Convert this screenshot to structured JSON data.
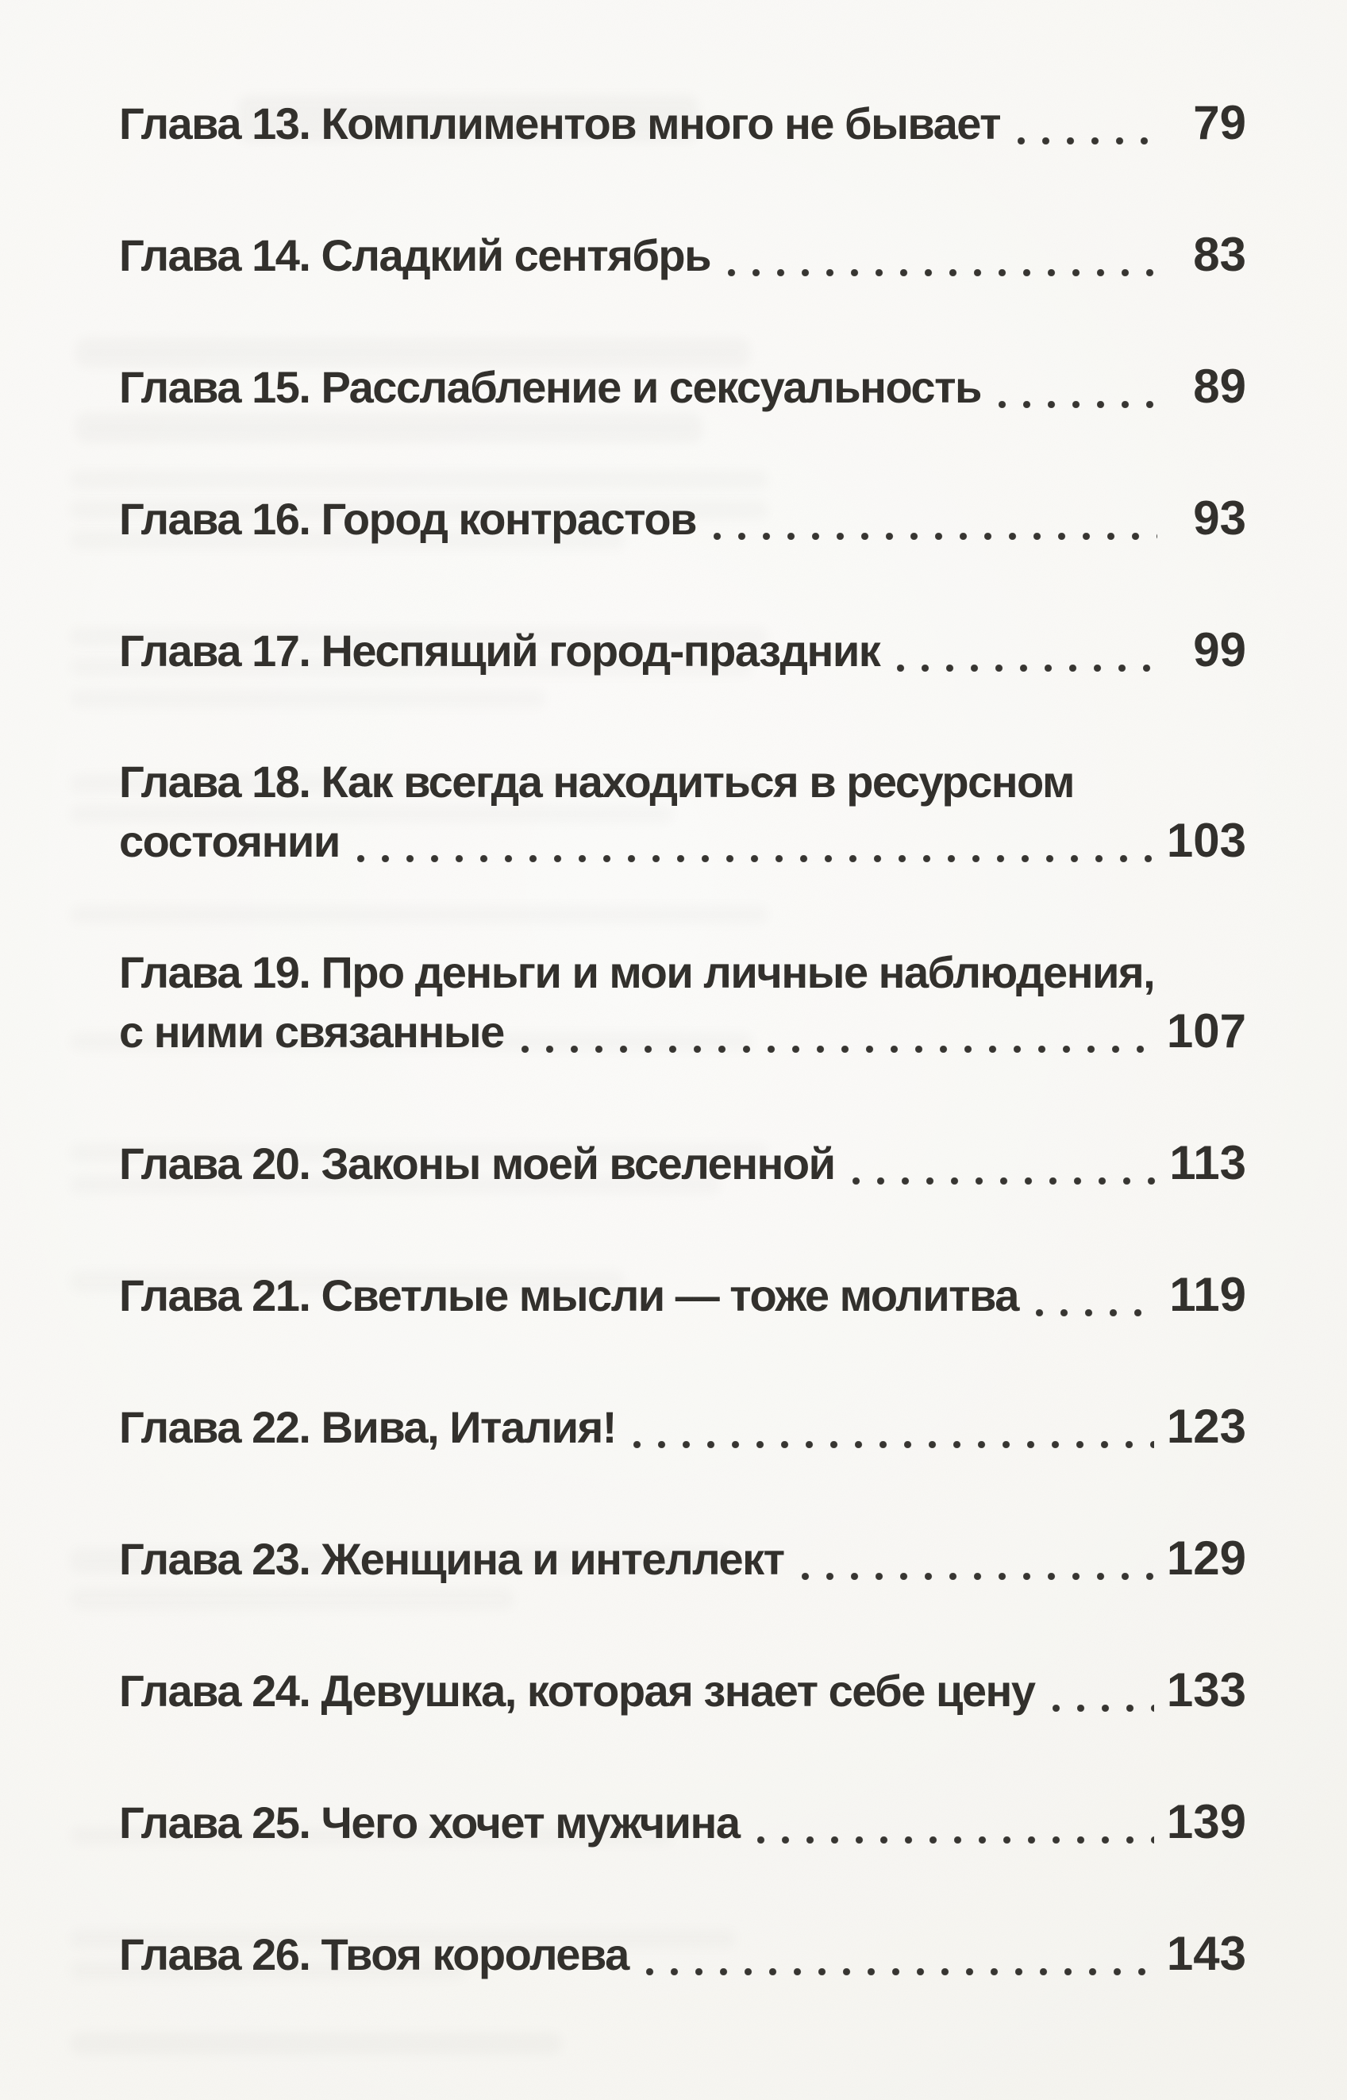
{
  "page": {
    "kind": "book-table-of-contents",
    "language": "ru"
  },
  "colors": {
    "paper": "#f8f7f3",
    "ink": "#2f2d29",
    "dot_leader": "#34322e"
  },
  "toc": {
    "entries": [
      {
        "lines": [
          "Глава 13. Комплиментов много не бывает"
        ],
        "page": "79"
      },
      {
        "lines": [
          "Глава 14. Сладкий сентябрь"
        ],
        "page": "83"
      },
      {
        "lines": [
          "Глава 15. Расслабление и сексуальность"
        ],
        "page": "89"
      },
      {
        "lines": [
          "Глава 16. Город контрастов"
        ],
        "page": "93"
      },
      {
        "lines": [
          "Глава 17. Неспящий город-праздник"
        ],
        "page": "99"
      },
      {
        "lines": [
          "Глава 18. Как всегда находиться в ресурсном",
          "состоянии"
        ],
        "page": "103"
      },
      {
        "lines": [
          "Глава 19. Про деньги и мои личные наблюдения,",
          "с ними связанные"
        ],
        "page": "107"
      },
      {
        "lines": [
          "Глава 20. Законы моей вселенной"
        ],
        "page": "113"
      },
      {
        "lines": [
          "Глава 21. Светлые мысли — тоже молитва"
        ],
        "page": "119"
      },
      {
        "lines": [
          "Глава 22. Вива, Италия!"
        ],
        "page": "123"
      },
      {
        "lines": [
          "Глава 23. Женщина и интеллект"
        ],
        "page": "129"
      },
      {
        "lines": [
          "Глава 24. Девушка, которая знает себе цену"
        ],
        "page": "133"
      },
      {
        "lines": [
          "Глава 25. Чего хочет мужчина"
        ],
        "page": "139"
      },
      {
        "lines": [
          "Глава 26. Твоя королева"
        ],
        "page": "143"
      }
    ]
  }
}
